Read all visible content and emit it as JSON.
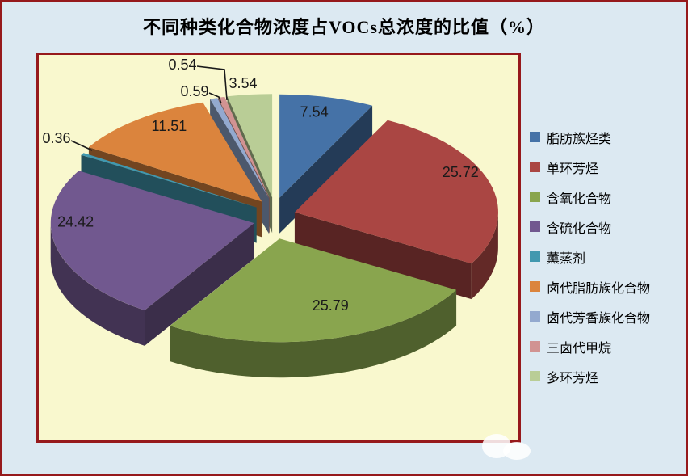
{
  "title": "不同种类化合物浓度占VOCs总浓度的比值（%）",
  "chart_data": {
    "type": "pie",
    "style": "3d-exploded",
    "title": "不同种类化合物浓度占VOCs总浓度的比值（%）",
    "unit": "%",
    "start_angle_deg": 0,
    "direction": "clockwise",
    "legend_position": "right",
    "data_labels_shown": true,
    "slices": [
      {
        "label": "脂肪族烃类",
        "value": 7.54,
        "color": "#4572A7"
      },
      {
        "label": "单环芳烃",
        "value": 25.72,
        "color": "#AA4643"
      },
      {
        "label": "含氧化合物",
        "value": 25.79,
        "color": "#89A54E"
      },
      {
        "label": "含硫化合物",
        "value": 24.42,
        "color": "#71588F"
      },
      {
        "label": "薰蒸剂",
        "value": 0.36,
        "color": "#4198AF"
      },
      {
        "label": "卤代脂肪族化合物",
        "value": 11.51,
        "color": "#DB843D"
      },
      {
        "label": "卤代芳香族化合物",
        "value": 0.59,
        "color": "#93A9CF"
      },
      {
        "label": "三卤代甲烷",
        "value": 0.54,
        "color": "#D19392"
      },
      {
        "label": "多环芳烃",
        "value": 3.54,
        "color": "#B9CD96"
      }
    ]
  },
  "colors": {
    "outer_background": "#DCE9F2",
    "plot_background": "#F9F8CE",
    "frame_border": "#96191C",
    "label_text": "#1A1A1A"
  }
}
